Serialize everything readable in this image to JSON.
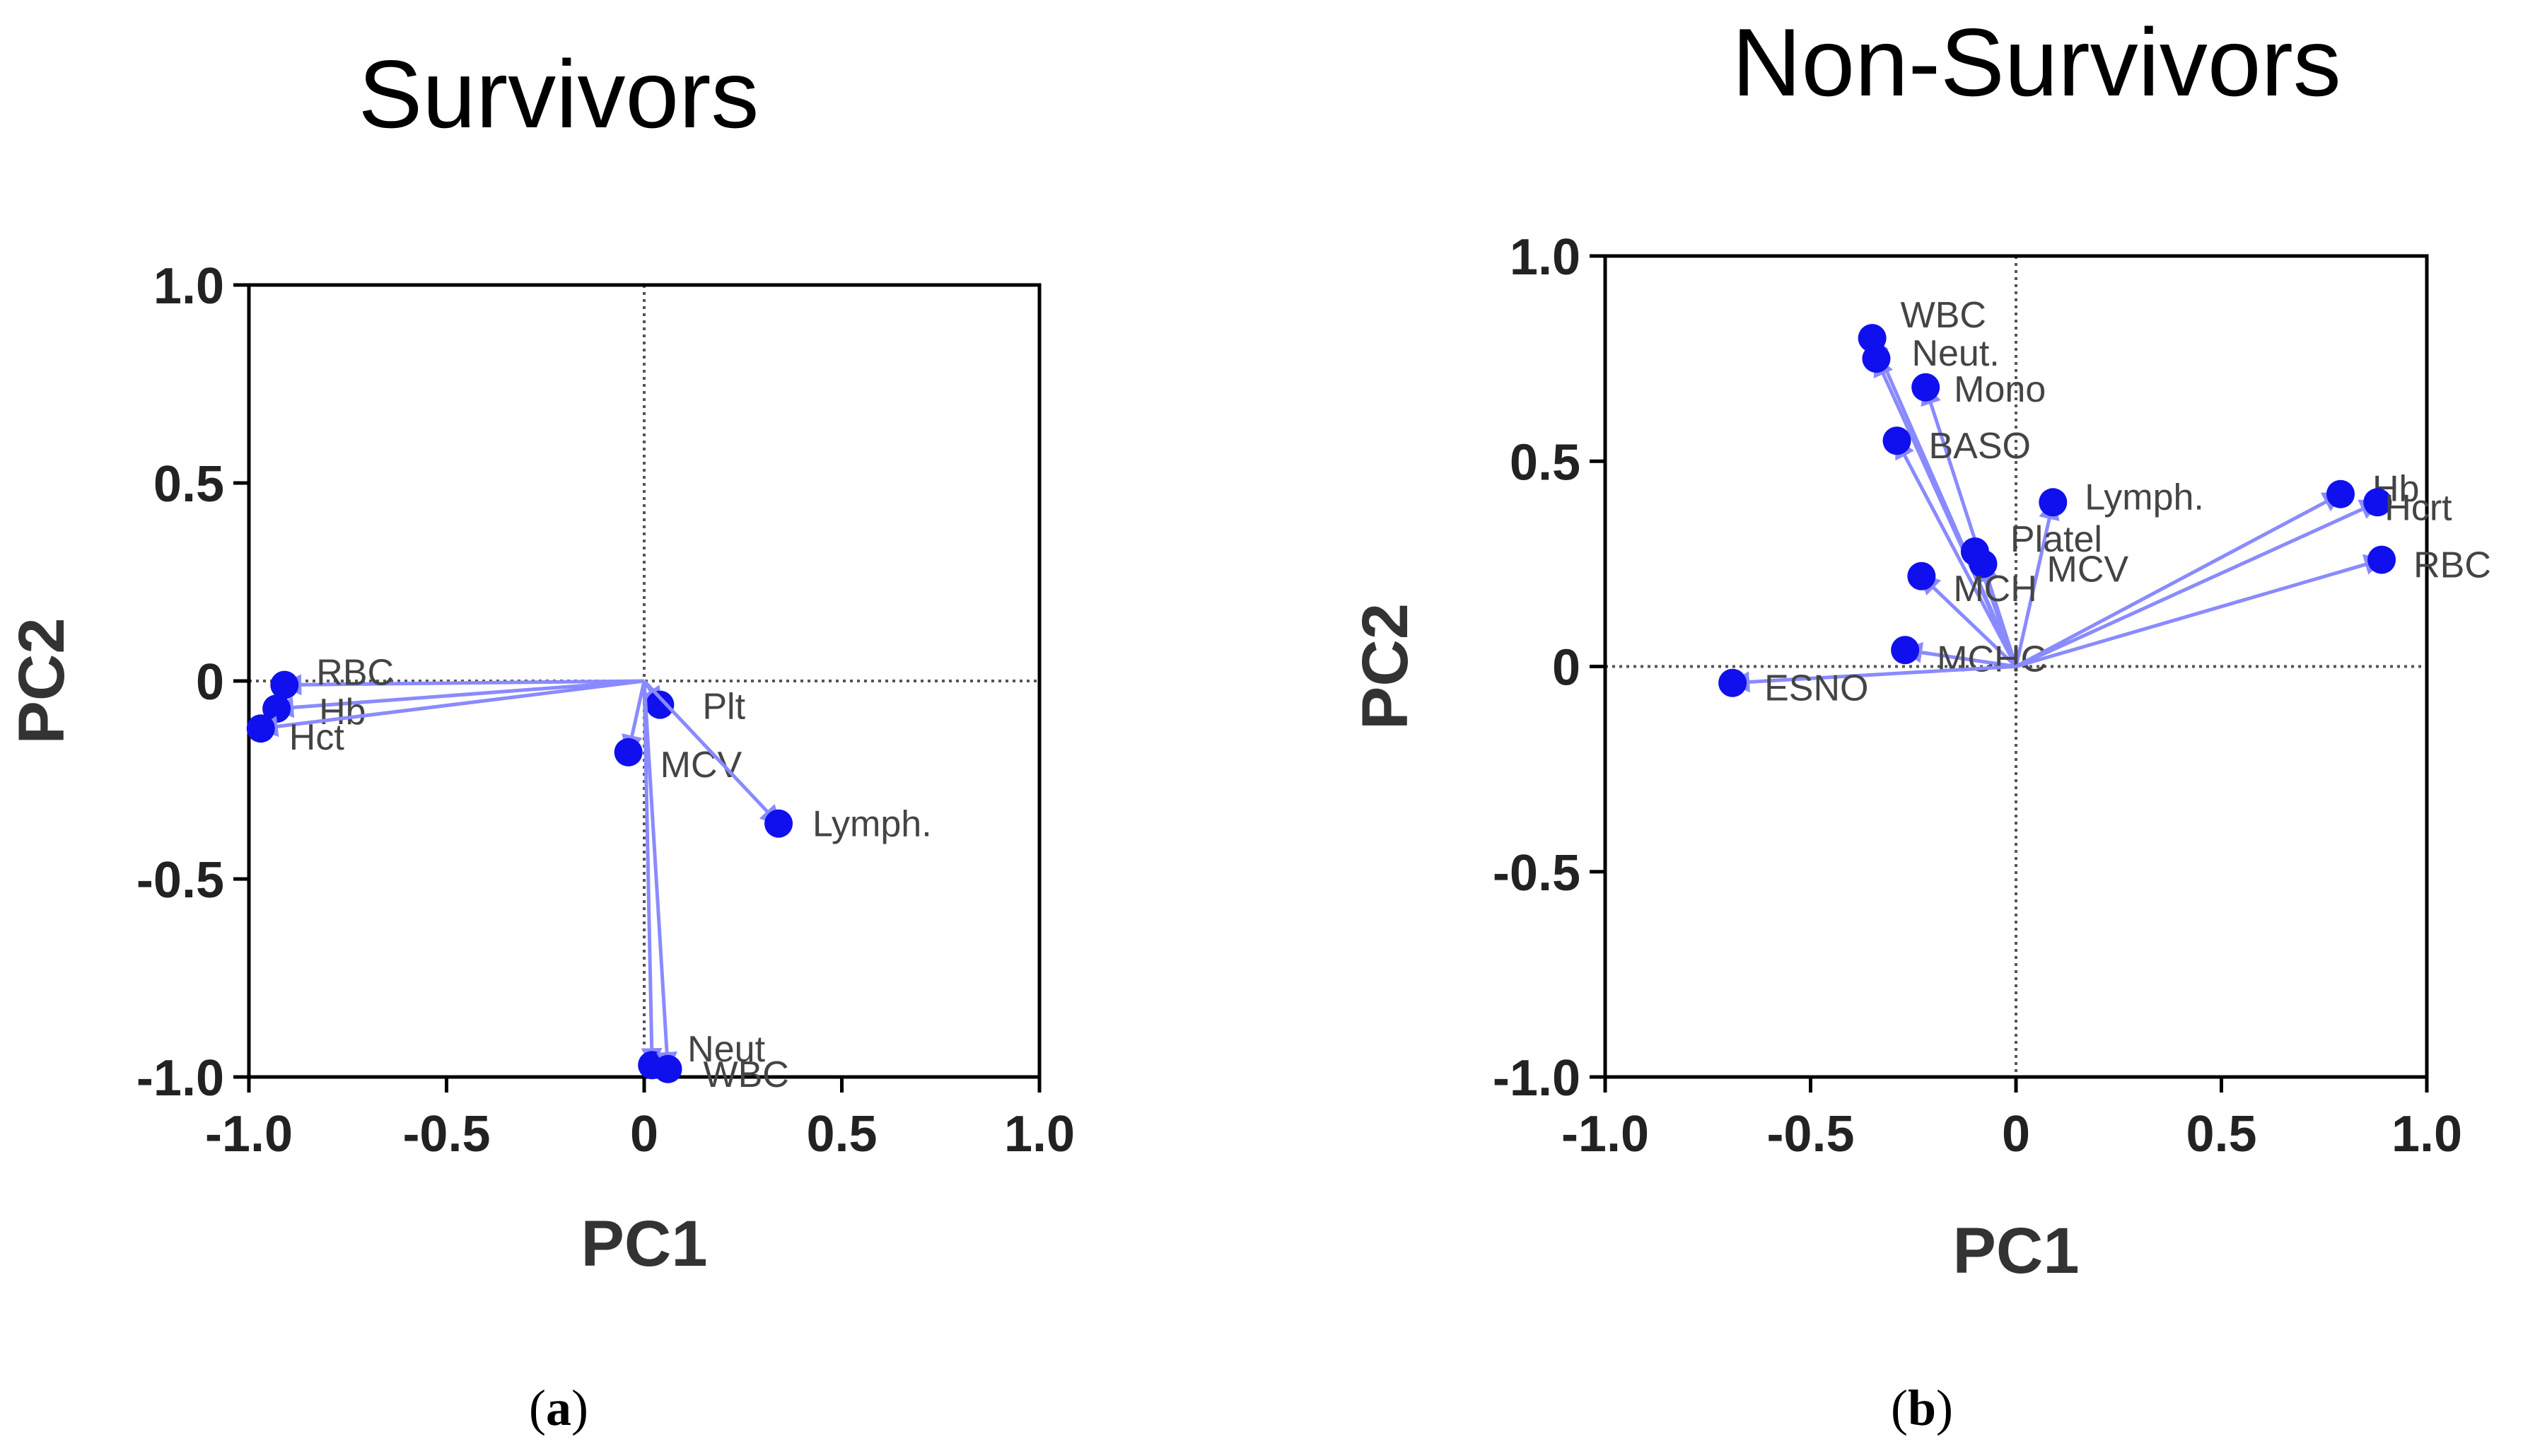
{
  "colors": {
    "point": "#1010ee",
    "vector": "#8a8aff",
    "axis": "#000000",
    "refline": "#555555"
  },
  "chart_data": [
    {
      "type": "scatter",
      "subtype": "pca-loadings-biplot",
      "title": "Survivors",
      "caption_letter": "a",
      "xlabel": "PC1",
      "ylabel": "PC2",
      "xlim": [
        -1.0,
        1.0
      ],
      "ylim": [
        -1.0,
        1.0
      ],
      "xticks": [
        "-1.0",
        "-0.5",
        "0",
        "0.5",
        "1.0"
      ],
      "yticks": [
        "1.0",
        "0.5",
        "0",
        "-0.5",
        "-1.0"
      ],
      "points": [
        {
          "label": "RBC",
          "x": -0.91,
          "y": -0.01
        },
        {
          "label": "Hb",
          "x": -0.93,
          "y": -0.07
        },
        {
          "label": "Hct",
          "x": -0.97,
          "y": -0.12
        },
        {
          "label": "Plt",
          "x": 0.04,
          "y": -0.06
        },
        {
          "label": "MCV",
          "x": -0.04,
          "y": -0.18
        },
        {
          "label": "Lymph.",
          "x": 0.34,
          "y": -0.36
        },
        {
          "label": "Neut",
          "x": 0.02,
          "y": -0.97
        },
        {
          "label": "WBC",
          "x": 0.06,
          "y": -0.98
        }
      ]
    },
    {
      "type": "scatter",
      "subtype": "pca-loadings-biplot",
      "title": "Non-Survivors",
      "caption_letter": "b",
      "xlabel": "PC1",
      "ylabel": "PC2",
      "xlim": [
        -1.0,
        1.0
      ],
      "ylim": [
        -1.0,
        1.0
      ],
      "xticks": [
        "-1.0",
        "-0.5",
        "0",
        "0.5",
        "1.0"
      ],
      "yticks": [
        "1.0",
        "0.5",
        "0",
        "-0.5",
        "-1.0"
      ],
      "points": [
        {
          "label": "WBC",
          "x": -0.35,
          "y": 0.8
        },
        {
          "label": "Neut.",
          "x": -0.34,
          "y": 0.75
        },
        {
          "label": "Mono",
          "x": -0.22,
          "y": 0.68
        },
        {
          "label": "BASO",
          "x": -0.29,
          "y": 0.55
        },
        {
          "label": "Lymph.",
          "x": 0.09,
          "y": 0.4
        },
        {
          "label": "Platel",
          "x": -0.1,
          "y": 0.28
        },
        {
          "label": "MCV",
          "x": -0.08,
          "y": 0.25
        },
        {
          "label": "MCH",
          "x": -0.23,
          "y": 0.22
        },
        {
          "label": "MCHC",
          "x": -0.27,
          "y": 0.04
        },
        {
          "label": "ESNO",
          "x": -0.69,
          "y": -0.04
        },
        {
          "label": "Hb",
          "x": 0.79,
          "y": 0.42
        },
        {
          "label": "Hcrt",
          "x": 0.88,
          "y": 0.4
        },
        {
          "label": "RBC",
          "x": 0.89,
          "y": 0.26
        }
      ]
    }
  ]
}
